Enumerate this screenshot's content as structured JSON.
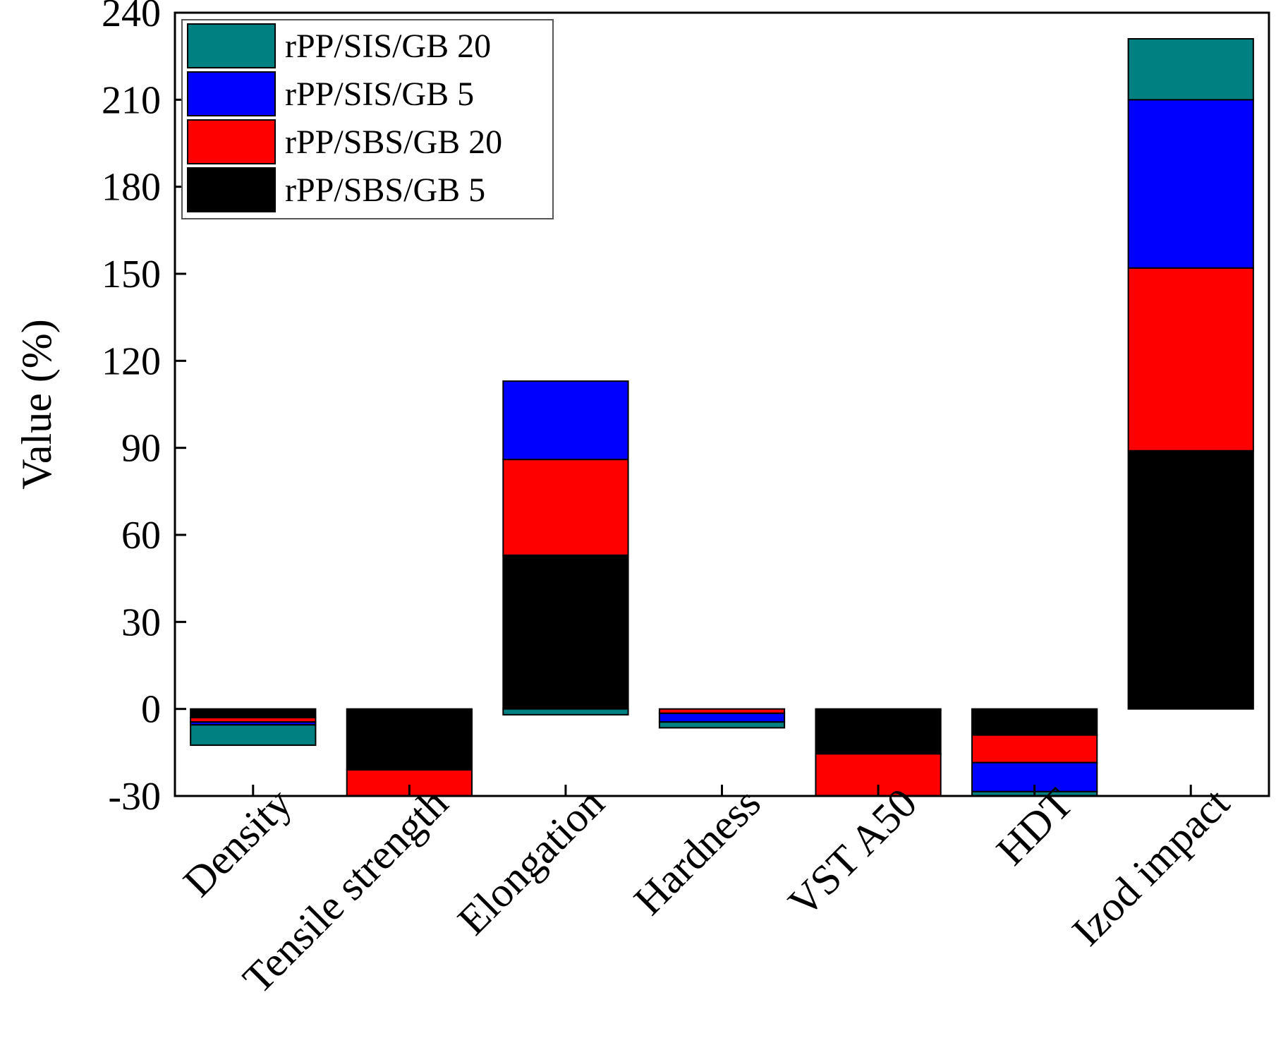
{
  "chart_data": {
    "type": "bar",
    "stacked": true,
    "title": "",
    "xlabel": "",
    "ylabel": "Value (%)",
    "ylim": [
      -30,
      240
    ],
    "yticks": [
      -30,
      0,
      30,
      60,
      90,
      120,
      150,
      180,
      210,
      240
    ],
    "categories": [
      "Density",
      "Tensile strength",
      "Elongation",
      "Hardness",
      "VST A50",
      "HDT",
      "Izod impact"
    ],
    "series": [
      {
        "name": "rPP/SBS/GB 5",
        "color": "#000000",
        "values": [
          -3,
          -21,
          53,
          0,
          -15.5,
          -9,
          89
        ]
      },
      {
        "name": "rPP/SBS/GB 20",
        "color": "#ff0000",
        "values": [
          -1.5,
          -10.5,
          33,
          -1.5,
          -17,
          -9.5,
          63
        ]
      },
      {
        "name": "rPP/SIS/GB 5",
        "color": "#0000ff",
        "values": [
          -1,
          0,
          27,
          -3,
          0,
          -10,
          58
        ]
      },
      {
        "name": "rPP/SIS/GB 20",
        "color": "#008080",
        "values": [
          -7,
          0,
          -2,
          -2,
          0,
          -2,
          21
        ]
      }
    ],
    "legend": {
      "position": "top-left",
      "order": [
        "rPP/SIS/GB 20",
        "rPP/SIS/GB 5",
        "rPP/SBS/GB 20",
        "rPP/SBS/GB 5"
      ]
    },
    "grid": false
  }
}
